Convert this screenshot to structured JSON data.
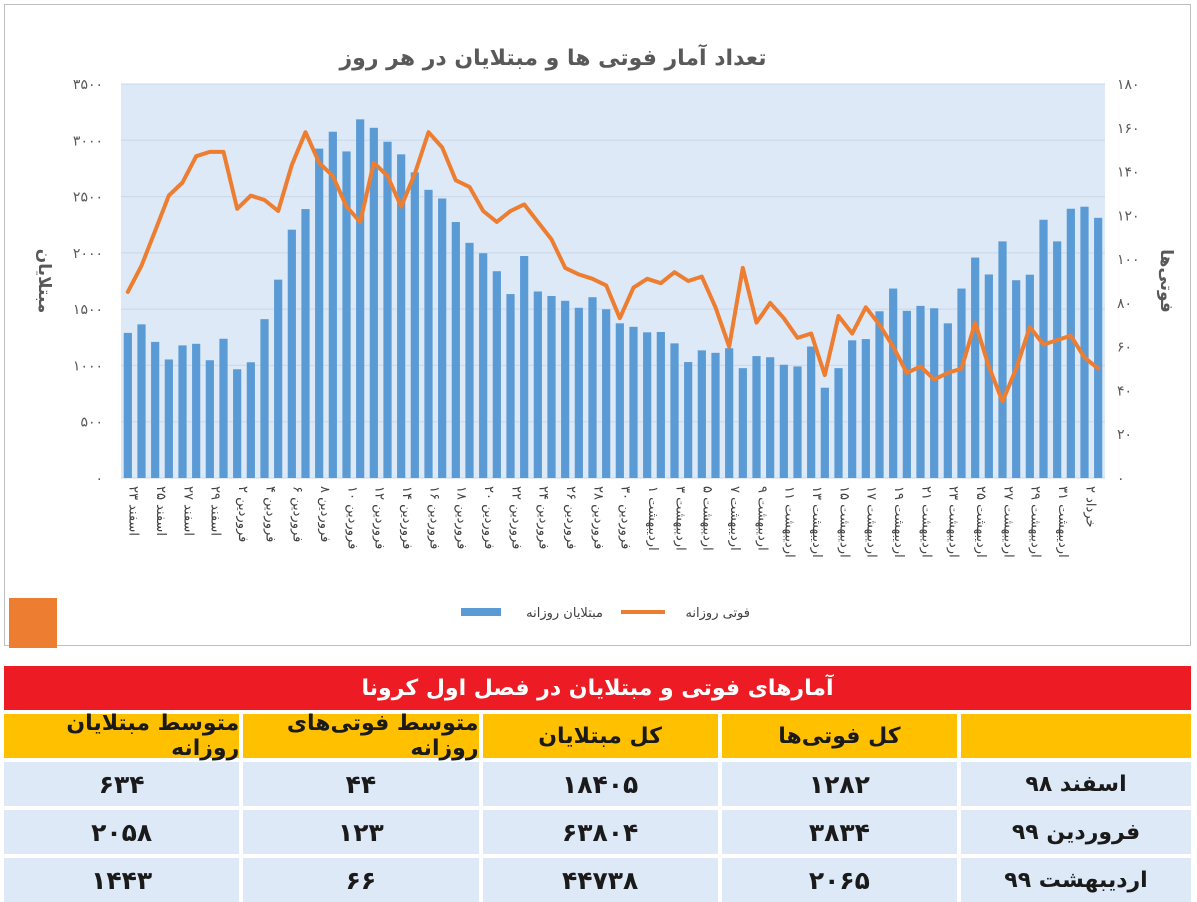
{
  "chart_data": {
    "type": "bar+line",
    "title": "تعداد آمار فوتی ها و مبتلایان در هر روز",
    "ylabel_left": "مبتلایان",
    "ylabel_right": "فوتی‌ها",
    "ylim_left": [
      0,
      3500
    ],
    "ylim_right": [
      0,
      180
    ],
    "yticks_left": [
      "۰",
      "۵۰۰",
      "۱۰۰۰",
      "۱۵۰۰",
      "۲۰۰۰",
      "۲۵۰۰",
      "۳۰۰۰",
      "۳۵۰۰"
    ],
    "yticks_right": [
      "۰",
      "۲۰",
      "۴۰",
      "۶۰",
      "۸۰",
      "۱۰۰",
      "۱۲۰",
      "۱۴۰",
      "۱۶۰",
      "۱۸۰"
    ],
    "xtick_labels": [
      "۲۳ اسفند",
      "۲۵ اسفند",
      "۲۷ اسفند",
      "۲۹ اسفند",
      "۲ فروردین",
      "۴ فروردین",
      "۶ فروردین",
      "۸ فروردین",
      "۱۰ فروردین",
      "۱۲ فروردین",
      "۱۴ فروردین",
      "۱۶ فروردین",
      "۱۸ فروردین",
      "۲۰ فروردین",
      "۲۲ فروردین",
      "۲۴ فروردین",
      "فروردین ۲۶",
      "فروردین ۲۸",
      "فروردین ۳۰",
      "۱ اردیبهشت",
      "۳ اردیبهشت",
      "۵ اردیبهشت",
      "۷ اردیبهشت",
      "۹ اردیبهشت",
      "۱۱ اردیبهشت",
      "۱۳ اردیبهشت",
      "۱۵ اردیبهشت",
      "۱۷ اردیبهشت",
      "۱۹ اردیبهشت",
      "۲۱ اردیبهشت",
      "۲۳ اردیبهشت",
      "۲۵ اردیبهشت",
      "۲۷ اردیبهشت",
      "۲۹ اردیبهشت",
      "۳۱ اردیبهشت",
      "۲ خرداد"
    ],
    "series": [
      {
        "name": "مبتلایان روزانه",
        "kind": "bar",
        "axis": "left",
        "color": "#5b9bd5",
        "values": [
          1289,
          1365,
          1209,
          1053,
          1178,
          1192,
          1046,
          1237,
          966,
          1028,
          1411,
          1762,
          2206,
          2389,
          2926,
          3076,
          2901,
          3186,
          3111,
          2987,
          2875,
          2715,
          2560,
          2483,
          2274,
          2089,
          1997,
          1837,
          1634,
          1972,
          1657,
          1617,
          1574,
          1512,
          1606,
          1499,
          1374,
          1343,
          1294,
          1297,
          1196,
          1030,
          1134,
          1112,
          1153,
          976,
          1083,
          1073,
          1006,
          991,
          1168,
          802,
          976,
          1223,
          1234,
          1481,
          1683,
          1485,
          1529,
          1508,
          1374,
          1683,
          1958,
          1808,
          2102,
          1757,
          1806,
          2294,
          2102,
          2392,
          2410,
          2311
        ]
      },
      {
        "name": "فوتی روزانه",
        "kind": "line",
        "axis": "right",
        "color": "#ed7d31",
        "values": [
          85,
          97,
          113,
          129,
          135,
          147,
          149,
          149,
          123,
          129,
          127,
          122,
          143,
          158,
          144,
          138,
          124,
          117,
          144,
          138,
          124,
          139,
          158,
          151,
          136,
          133,
          122,
          117,
          122,
          125,
          117,
          109,
          96,
          93,
          91,
          88,
          73,
          87,
          91,
          89,
          94,
          90,
          92,
          78,
          60,
          96,
          71,
          80,
          73,
          64,
          66,
          47,
          74,
          66,
          78,
          70,
          60,
          48,
          51,
          45,
          48,
          50,
          71,
          51,
          35,
          50,
          69,
          61,
          63,
          65,
          55,
          50
        ]
      }
    ],
    "legend": "bottom"
  },
  "table": {
    "title": "آمارهای فوتی و مبتلایان در فصل اول کرونا",
    "headers": [
      "",
      "کل فوتی‌ها",
      "کل مبتلایان",
      "متوسط فوتی‌های روزانه",
      "متوسط مبتلایان روزانه"
    ],
    "rows": [
      {
        "label": "اسفند ۹۸",
        "values": [
          "۱۲۸۲",
          "۱۸۴۰۵",
          "۴۴",
          "۶۳۴"
        ]
      },
      {
        "label": "فروردین ۹۹",
        "values": [
          "۳۸۳۴",
          "۶۳۸۰۴",
          "۱۲۳",
          "۲۰۵۸"
        ]
      },
      {
        "label": "اردیبهشت ۹۹",
        "values": [
          "۲۰۶۵",
          "۴۴۷۳۸",
          "۶۶",
          "۱۴۴۳"
        ]
      }
    ]
  },
  "colors": {
    "plot_bg": "#dde9f6",
    "bar": "#5b9bd5",
    "line": "#ed7d31",
    "table_title": "#ed1c24",
    "table_header": "#ffc000",
    "table_body": "#dde9f6"
  }
}
